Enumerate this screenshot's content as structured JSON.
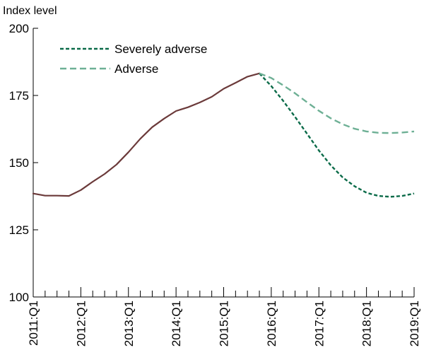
{
  "chart_data": {
    "type": "line",
    "title": "",
    "xlabel": "",
    "ylabel": "Index level",
    "ylim": [
      100,
      200
    ],
    "yticks": [
      100,
      125,
      150,
      175,
      200
    ],
    "xlim": [
      0,
      32
    ],
    "xtick_labels": [
      "2011:Q1",
      "2012:Q1",
      "2013:Q1",
      "2014:Q1",
      "2015:Q1",
      "2016:Q1",
      "2017:Q1",
      "2018:Q1",
      "2019:Q1"
    ],
    "legend_position": "top-left",
    "grid": false,
    "historical": {
      "color": "#6b3a3a",
      "values": [
        138.5,
        137.7,
        137.7,
        137.6,
        139.8,
        142.9,
        145.8,
        149.3,
        153.9,
        158.9,
        163.2,
        166.4,
        169.2,
        170.6,
        172.4,
        174.5,
        177.5,
        179.7,
        182.0,
        183.2
      ]
    },
    "series": [
      {
        "name": "Severely adverse",
        "color": "#0b6b49",
        "dash": "dense",
        "start_index": 19,
        "values": [
          183.2,
          178.5,
          173.0,
          167.0,
          160.8,
          154.5,
          149.0,
          144.5,
          141.2,
          138.8,
          137.6,
          137.3,
          137.6,
          138.5
        ]
      },
      {
        "name": "Adverse",
        "color": "#6eb095",
        "dash": "long",
        "start_index": 19,
        "values": [
          183.2,
          181.5,
          178.8,
          175.8,
          172.5,
          169.3,
          166.5,
          164.3,
          162.6,
          161.6,
          161.1,
          161.0,
          161.2,
          161.6
        ]
      }
    ]
  }
}
